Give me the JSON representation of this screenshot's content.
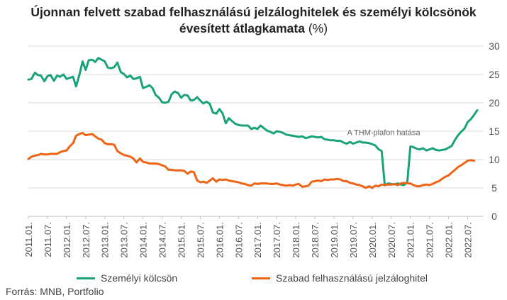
{
  "chart_data": {
    "type": "line",
    "title_line1": "Újonnan felvett szabad felhasználású jelzáloghitelek és személyi kölcsönök",
    "title_line2": "évesített átlagkamata",
    "title_unit": "(%)",
    "ylim": [
      0,
      30
    ],
    "yticks": [
      "0",
      "5",
      "10",
      "15",
      "20",
      "25",
      "30"
    ],
    "grid": true,
    "legend_position": "bottom",
    "xtick_labels": [
      "2011.01.",
      "2011.07.",
      "2012.01.",
      "2012.07.",
      "2013.01.",
      "2013.07.",
      "2014.01.",
      "2014.07.",
      "2015.01.",
      "2015.07.",
      "2016.01.",
      "2016.07.",
      "2017.01.",
      "2017.07.",
      "2018.01.",
      "2018.07.",
      "2019.01.",
      "2019.07.",
      "2020.01.",
      "2020.07.",
      "2021.01.",
      "2021.07.",
      "2022.01.",
      "2022.07."
    ],
    "annotation": "A THM-plafon hatása",
    "annotation_anchor": {
      "x": 2020.3,
      "y": 14.3
    },
    "series": [
      {
        "name": "Személyi kölcsön",
        "color": "#1aa37a",
        "points": [
          [
            2011.0,
            24.1
          ],
          [
            2011.08,
            24.2
          ],
          [
            2011.17,
            25.3
          ],
          [
            2011.25,
            24.9
          ],
          [
            2011.33,
            24.8
          ],
          [
            2011.42,
            23.8
          ],
          [
            2011.5,
            24.7
          ],
          [
            2011.58,
            24.9
          ],
          [
            2011.67,
            23.9
          ],
          [
            2011.75,
            24.8
          ],
          [
            2011.83,
            24.6
          ],
          [
            2011.92,
            25.0
          ],
          [
            2012.0,
            24.2
          ],
          [
            2012.08,
            24.4
          ],
          [
            2012.17,
            24.6
          ],
          [
            2012.25,
            22.9
          ],
          [
            2012.33,
            24.8
          ],
          [
            2012.42,
            27.3
          ],
          [
            2012.5,
            25.8
          ],
          [
            2012.58,
            27.5
          ],
          [
            2012.67,
            27.6
          ],
          [
            2012.75,
            27.2
          ],
          [
            2012.83,
            27.9
          ],
          [
            2012.92,
            27.6
          ],
          [
            2013.0,
            27.3
          ],
          [
            2013.08,
            26.2
          ],
          [
            2013.17,
            26.1
          ],
          [
            2013.25,
            26.3
          ],
          [
            2013.33,
            27.1
          ],
          [
            2013.42,
            25.4
          ],
          [
            2013.5,
            25.1
          ],
          [
            2013.58,
            24.5
          ],
          [
            2013.67,
            24.8
          ],
          [
            2013.75,
            24.2
          ],
          [
            2013.83,
            24.3
          ],
          [
            2013.92,
            24.6
          ],
          [
            2014.0,
            22.6
          ],
          [
            2014.08,
            22.8
          ],
          [
            2014.17,
            23.1
          ],
          [
            2014.25,
            22.6
          ],
          [
            2014.33,
            21.4
          ],
          [
            2014.42,
            20.9
          ],
          [
            2014.5,
            20.1
          ],
          [
            2014.58,
            20.0
          ],
          [
            2014.67,
            20.2
          ],
          [
            2014.75,
            21.5
          ],
          [
            2014.83,
            22.0
          ],
          [
            2014.92,
            21.7
          ],
          [
            2015.0,
            20.9
          ],
          [
            2015.08,
            21.4
          ],
          [
            2015.17,
            21.3
          ],
          [
            2015.25,
            20.4
          ],
          [
            2015.33,
            20.5
          ],
          [
            2015.42,
            21.0
          ],
          [
            2015.5,
            20.4
          ],
          [
            2015.58,
            19.9
          ],
          [
            2015.67,
            20.2
          ],
          [
            2015.75,
            19.8
          ],
          [
            2015.83,
            18.3
          ],
          [
            2015.92,
            18.1
          ],
          [
            2016.0,
            18.9
          ],
          [
            2016.08,
            18.2
          ],
          [
            2016.17,
            16.4
          ],
          [
            2016.25,
            17.3
          ],
          [
            2016.33,
            16.8
          ],
          [
            2016.42,
            16.3
          ],
          [
            2016.5,
            16.1
          ],
          [
            2016.58,
            16.0
          ],
          [
            2016.67,
            16.0
          ],
          [
            2016.75,
            16.0
          ],
          [
            2016.83,
            15.4
          ],
          [
            2016.92,
            15.6
          ],
          [
            2017.0,
            15.4
          ],
          [
            2017.08,
            16.0
          ],
          [
            2017.17,
            15.5
          ],
          [
            2017.25,
            15.1
          ],
          [
            2017.33,
            14.9
          ],
          [
            2017.42,
            14.6
          ],
          [
            2017.5,
            15.0
          ],
          [
            2017.58,
            14.9
          ],
          [
            2017.67,
            14.7
          ],
          [
            2017.75,
            14.4
          ],
          [
            2017.83,
            14.3
          ],
          [
            2017.92,
            14.2
          ],
          [
            2018.0,
            14.1
          ],
          [
            2018.08,
            14.0
          ],
          [
            2018.17,
            14.1
          ],
          [
            2018.25,
            13.8
          ],
          [
            2018.33,
            13.9
          ],
          [
            2018.42,
            14.1
          ],
          [
            2018.5,
            14.0
          ],
          [
            2018.58,
            13.9
          ],
          [
            2018.67,
            14.0
          ],
          [
            2018.75,
            13.6
          ],
          [
            2018.83,
            13.5
          ],
          [
            2018.92,
            13.4
          ],
          [
            2019.0,
            13.4
          ],
          [
            2019.08,
            13.3
          ],
          [
            2019.17,
            13.3
          ],
          [
            2019.25,
            13.0
          ],
          [
            2019.33,
            12.8
          ],
          [
            2019.42,
            13.1
          ],
          [
            2019.5,
            12.8
          ],
          [
            2019.58,
            13.0
          ],
          [
            2019.67,
            13.2
          ],
          [
            2019.75,
            13.0
          ],
          [
            2019.83,
            13.0
          ],
          [
            2019.92,
            12.9
          ],
          [
            2020.0,
            12.7
          ],
          [
            2020.08,
            12.5
          ],
          [
            2020.17,
            11.8
          ],
          [
            2020.25,
            11.5
          ],
          [
            2020.33,
            5.5
          ],
          [
            2020.42,
            5.8
          ],
          [
            2020.5,
            5.7
          ],
          [
            2020.58,
            5.6
          ],
          [
            2020.67,
            5.8
          ],
          [
            2020.75,
            5.6
          ],
          [
            2020.83,
            5.5
          ],
          [
            2020.92,
            6.0
          ],
          [
            2021.0,
            12.3
          ],
          [
            2021.08,
            12.2
          ],
          [
            2021.17,
            11.9
          ],
          [
            2021.25,
            11.8
          ],
          [
            2021.33,
            12.0
          ],
          [
            2021.42,
            11.6
          ],
          [
            2021.5,
            11.8
          ],
          [
            2021.58,
            12.0
          ],
          [
            2021.67,
            11.7
          ],
          [
            2021.75,
            11.6
          ],
          [
            2021.83,
            11.7
          ],
          [
            2021.92,
            11.8
          ],
          [
            2022.0,
            12.1
          ],
          [
            2022.08,
            12.4
          ],
          [
            2022.17,
            13.5
          ],
          [
            2022.25,
            14.3
          ],
          [
            2022.33,
            14.9
          ],
          [
            2022.42,
            15.5
          ],
          [
            2022.5,
            16.6
          ],
          [
            2022.58,
            17.1
          ],
          [
            2022.67,
            17.9
          ],
          [
            2022.75,
            18.7
          ]
        ]
      },
      {
        "name": "Szabad felhasználású jelzáloghitel",
        "color": "#ee6414",
        "points": [
          [
            2011.0,
            10.1
          ],
          [
            2011.08,
            10.5
          ],
          [
            2011.17,
            10.7
          ],
          [
            2011.25,
            10.8
          ],
          [
            2011.33,
            11.0
          ],
          [
            2011.42,
            10.9
          ],
          [
            2011.5,
            10.9
          ],
          [
            2011.58,
            11.0
          ],
          [
            2011.67,
            11.0
          ],
          [
            2011.75,
            11.0
          ],
          [
            2011.83,
            11.3
          ],
          [
            2011.92,
            11.5
          ],
          [
            2012.0,
            11.6
          ],
          [
            2012.08,
            12.3
          ],
          [
            2012.17,
            12.9
          ],
          [
            2012.25,
            14.2
          ],
          [
            2012.33,
            14.5
          ],
          [
            2012.42,
            14.7
          ],
          [
            2012.5,
            14.3
          ],
          [
            2012.58,
            14.4
          ],
          [
            2012.67,
            14.5
          ],
          [
            2012.75,
            14.1
          ],
          [
            2012.83,
            13.7
          ],
          [
            2012.92,
            13.5
          ],
          [
            2013.0,
            12.9
          ],
          [
            2013.08,
            12.7
          ],
          [
            2013.17,
            12.7
          ],
          [
            2013.25,
            12.6
          ],
          [
            2013.33,
            11.5
          ],
          [
            2013.42,
            11.1
          ],
          [
            2013.5,
            10.8
          ],
          [
            2013.58,
            10.7
          ],
          [
            2013.67,
            10.5
          ],
          [
            2013.75,
            10.2
          ],
          [
            2013.83,
            9.5
          ],
          [
            2013.92,
            10.2
          ],
          [
            2014.0,
            9.6
          ],
          [
            2014.08,
            9.5
          ],
          [
            2014.17,
            9.3
          ],
          [
            2014.25,
            9.3
          ],
          [
            2014.33,
            9.3
          ],
          [
            2014.42,
            9.2
          ],
          [
            2014.5,
            9.0
          ],
          [
            2014.58,
            8.8
          ],
          [
            2014.67,
            8.2
          ],
          [
            2014.75,
            8.2
          ],
          [
            2014.83,
            8.1
          ],
          [
            2014.92,
            8.1
          ],
          [
            2015.0,
            8.1
          ],
          [
            2015.08,
            8.0
          ],
          [
            2015.17,
            7.5
          ],
          [
            2015.25,
            7.9
          ],
          [
            2015.33,
            7.8
          ],
          [
            2015.42,
            6.3
          ],
          [
            2015.5,
            6.0
          ],
          [
            2015.58,
            6.1
          ],
          [
            2015.67,
            5.9
          ],
          [
            2015.75,
            6.3
          ],
          [
            2015.83,
            6.7
          ],
          [
            2015.92,
            6.1
          ],
          [
            2016.0,
            6.5
          ],
          [
            2016.08,
            6.4
          ],
          [
            2016.17,
            6.5
          ],
          [
            2016.25,
            6.3
          ],
          [
            2016.33,
            6.2
          ],
          [
            2016.42,
            6.1
          ],
          [
            2016.5,
            6.0
          ],
          [
            2016.58,
            5.8
          ],
          [
            2016.67,
            5.7
          ],
          [
            2016.75,
            5.5
          ],
          [
            2016.83,
            5.4
          ],
          [
            2016.92,
            5.8
          ],
          [
            2017.0,
            5.7
          ],
          [
            2017.08,
            5.8
          ],
          [
            2017.17,
            5.8
          ],
          [
            2017.25,
            5.8
          ],
          [
            2017.33,
            5.7
          ],
          [
            2017.42,
            5.7
          ],
          [
            2017.5,
            5.8
          ],
          [
            2017.58,
            5.6
          ],
          [
            2017.67,
            5.5
          ],
          [
            2017.75,
            5.4
          ],
          [
            2017.83,
            5.5
          ],
          [
            2017.92,
            5.4
          ],
          [
            2018.0,
            5.6
          ],
          [
            2018.08,
            5.7
          ],
          [
            2018.17,
            5.2
          ],
          [
            2018.25,
            5.3
          ],
          [
            2018.33,
            5.4
          ],
          [
            2018.42,
            6.1
          ],
          [
            2018.5,
            6.2
          ],
          [
            2018.58,
            6.3
          ],
          [
            2018.67,
            6.2
          ],
          [
            2018.75,
            6.5
          ],
          [
            2018.83,
            6.4
          ],
          [
            2018.92,
            6.5
          ],
          [
            2019.0,
            6.5
          ],
          [
            2019.08,
            6.6
          ],
          [
            2019.17,
            6.5
          ],
          [
            2019.25,
            6.2
          ],
          [
            2019.33,
            6.2
          ],
          [
            2019.42,
            5.9
          ],
          [
            2019.5,
            5.8
          ],
          [
            2019.58,
            5.6
          ],
          [
            2019.67,
            5.5
          ],
          [
            2019.75,
            5.3
          ],
          [
            2019.83,
            5.0
          ],
          [
            2019.92,
            5.3
          ],
          [
            2020.0,
            5.0
          ],
          [
            2020.08,
            5.4
          ],
          [
            2020.17,
            5.3
          ],
          [
            2020.25,
            5.6
          ],
          [
            2020.33,
            5.5
          ],
          [
            2020.42,
            5.6
          ],
          [
            2020.5,
            5.6
          ],
          [
            2020.58,
            5.7
          ],
          [
            2020.67,
            5.5
          ],
          [
            2020.75,
            5.8
          ],
          [
            2020.83,
            5.9
          ],
          [
            2020.92,
            5.8
          ],
          [
            2021.0,
            5.8
          ],
          [
            2021.08,
            5.5
          ],
          [
            2021.17,
            5.3
          ],
          [
            2021.25,
            5.3
          ],
          [
            2021.33,
            5.5
          ],
          [
            2021.42,
            5.6
          ],
          [
            2021.5,
            5.5
          ],
          [
            2021.58,
            5.7
          ],
          [
            2021.67,
            6.0
          ],
          [
            2021.75,
            6.2
          ],
          [
            2021.83,
            6.6
          ],
          [
            2021.92,
            7.0
          ],
          [
            2022.0,
            7.2
          ],
          [
            2022.08,
            7.7
          ],
          [
            2022.17,
            8.2
          ],
          [
            2022.25,
            8.7
          ],
          [
            2022.33,
            9.0
          ],
          [
            2022.42,
            9.4
          ],
          [
            2022.5,
            9.8
          ],
          [
            2022.58,
            9.9
          ],
          [
            2022.67,
            9.8
          ]
        ]
      }
    ]
  },
  "source": "Forrás: MNB, Portfolio"
}
